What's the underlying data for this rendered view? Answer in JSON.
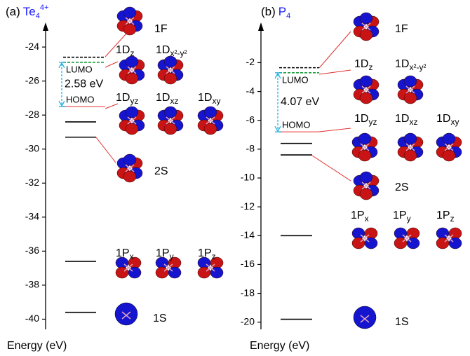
{
  "chart_data": [
    {
      "type": "energy-levels",
      "panel_label": "(a)",
      "title": "Te",
      "title_sub": "4",
      "title_sup": "4+",
      "title_color": "#1a1aff",
      "ylabel": "Energy (eV)",
      "ylim": [
        -40.6,
        -22.8
      ],
      "yticks": [
        -40,
        -38,
        -36,
        -34,
        -32,
        -30,
        -28,
        -26,
        -24
      ],
      "levels": [
        {
          "value": -24.6,
          "color": "#000000",
          "dashed": true
        },
        {
          "value": -24.9,
          "color": "#1a9e3a",
          "dashed": true
        },
        {
          "value": -27.5,
          "color": "#f08080",
          "dashed": false
        },
        {
          "value": -28.4,
          "color": "#000000",
          "dashed": false
        },
        {
          "value": -29.3,
          "color": "#000000",
          "dashed": false
        },
        {
          "value": -36.6,
          "color": "#000000",
          "dashed": false
        },
        {
          "value": -39.6,
          "color": "#000000",
          "dashed": false
        }
      ],
      "lumo_label": "LUMO",
      "homo_label": "HOMO",
      "gap_label": "2.58 eV",
      "gap_color": "#1fb0e0",
      "orbitals": [
        {
          "name": "1F"
        },
        {
          "name": "1D",
          "sub": "z"
        },
        {
          "name": "1D",
          "sub": "x²-y²"
        },
        {
          "name": "1D",
          "sub": "yz"
        },
        {
          "name": "1D",
          "sub": "xz"
        },
        {
          "name": "1D",
          "sub": "xy"
        },
        {
          "name": "2S"
        },
        {
          "name": "1P",
          "sub": "x"
        },
        {
          "name": "1P",
          "sub": "y"
        },
        {
          "name": "1P",
          "sub": "z"
        },
        {
          "name": "1S"
        }
      ]
    },
    {
      "type": "energy-levels",
      "panel_label": "(b)",
      "title": "P",
      "title_sub": "4",
      "title_color": "#1a1aff",
      "ylabel": "Energy (eV)",
      "ylim": [
        -20.5,
        0.5
      ],
      "yticks": [
        -20,
        -18,
        -16,
        -14,
        -12,
        -10,
        -8,
        -6,
        -4,
        -2
      ],
      "levels": [
        {
          "value": -2.35,
          "color": "#000000",
          "dashed": true
        },
        {
          "value": -2.7,
          "color": "#1a9e3a",
          "dashed": true
        },
        {
          "value": -6.8,
          "color": "#f08080",
          "dashed": false
        },
        {
          "value": -7.6,
          "color": "#000000",
          "dashed": false
        },
        {
          "value": -8.4,
          "color": "#000000",
          "dashed": false
        },
        {
          "value": -14,
          "color": "#000000",
          "dashed": false
        },
        {
          "value": -19.8,
          "color": "#000000",
          "dashed": false
        }
      ],
      "lumo_label": "LUMO",
      "homo_label": "HOMO",
      "gap_label": "4.07 eV",
      "gap_color": "#1fb0e0",
      "orbitals": [
        {
          "name": "1F"
        },
        {
          "name": "1D",
          "sub": "z"
        },
        {
          "name": "1D",
          "sub": "x²-y²"
        },
        {
          "name": "1D",
          "sub": "yz"
        },
        {
          "name": "1D",
          "sub": "xz"
        },
        {
          "name": "1D",
          "sub": "xy"
        },
        {
          "name": "2S"
        },
        {
          "name": "1P",
          "sub": "x"
        },
        {
          "name": "1P",
          "sub": "y"
        },
        {
          "name": "1P",
          "sub": "z"
        },
        {
          "name": "1S"
        }
      ]
    }
  ]
}
